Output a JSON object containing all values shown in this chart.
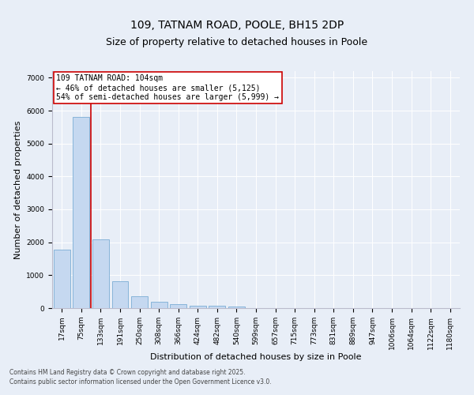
{
  "title1": "109, TATNAM ROAD, POOLE, BH15 2DP",
  "title2": "Size of property relative to detached houses in Poole",
  "xlabel": "Distribution of detached houses by size in Poole",
  "ylabel": "Number of detached properties",
  "categories": [
    "17sqm",
    "75sqm",
    "133sqm",
    "191sqm",
    "250sqm",
    "308sqm",
    "366sqm",
    "424sqm",
    "482sqm",
    "540sqm",
    "599sqm",
    "657sqm",
    "715sqm",
    "773sqm",
    "831sqm",
    "889sqm",
    "947sqm",
    "1006sqm",
    "1064sqm",
    "1122sqm",
    "1180sqm"
  ],
  "values": [
    1780,
    5820,
    2090,
    820,
    360,
    200,
    110,
    80,
    70,
    50,
    0,
    0,
    0,
    0,
    0,
    0,
    0,
    0,
    0,
    0,
    0
  ],
  "bar_color": "#c5d8f0",
  "bar_edge_color": "#7aadd4",
  "vline_color": "#cc0000",
  "annotation_text": "109 TATNAM ROAD: 104sqm\n← 46% of detached houses are smaller (5,125)\n54% of semi-detached houses are larger (5,999) →",
  "annotation_box_color": "#ffffff",
  "annotation_box_edge_color": "#cc0000",
  "ylim": [
    0,
    7200
  ],
  "yticks": [
    0,
    1000,
    2000,
    3000,
    4000,
    5000,
    6000,
    7000
  ],
  "bg_color": "#e8eef7",
  "plot_bg_color": "#e8eef7",
  "footer_line1": "Contains HM Land Registry data © Crown copyright and database right 2025.",
  "footer_line2": "Contains public sector information licensed under the Open Government Licence v3.0.",
  "title_fontsize": 10,
  "tick_fontsize": 6.5,
  "label_fontsize": 8,
  "annotation_fontsize": 7,
  "footer_fontsize": 5.5
}
